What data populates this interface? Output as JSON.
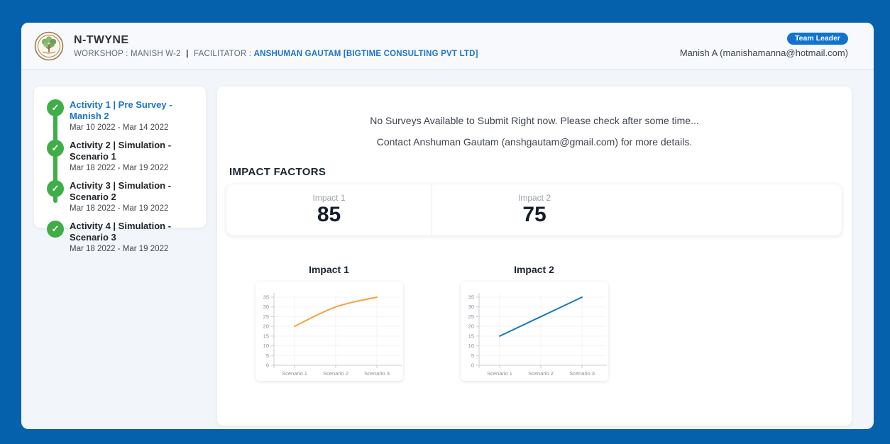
{
  "header": {
    "app_name": "N-TWYNE",
    "workshop_label": "WORKSHOP : MANISH W-2",
    "separator": "|",
    "facilitator_label": "FACILITATOR :",
    "facilitator_value": "ANSHUMAN GAUTAM [BIGTIME CONSULTING PVT LTD]",
    "badge": "Team Leader",
    "user": "Manish A (manishamanna@hotmail.com)"
  },
  "sidebar": {
    "activities": [
      {
        "title": "Activity 1 | Pre Survey - Manish 2",
        "dates": "Mar 10 2022 - Mar 14 2022",
        "active": true
      },
      {
        "title": "Activity 2 | Simulation - Scenario 1",
        "dates": "Mar 18 2022 - Mar 19 2022",
        "active": false
      },
      {
        "title": "Activity 3 | Simulation - Scenario 2",
        "dates": "Mar 18 2022 - Mar 19 2022",
        "active": false
      },
      {
        "title": "Activity 4 | Simulation - Scenario 3",
        "dates": "Mar 18 2022 - Mar 19 2022",
        "active": false
      }
    ]
  },
  "main": {
    "messages": [
      "No Surveys Available to Submit Right now. Please check after some time...",
      "Contact Anshuman Gautam (anshgautam@gmail.com) for more details."
    ],
    "impact_heading": "IMPACT FACTORS",
    "impacts": [
      {
        "label": "Impact 1",
        "value": "85"
      },
      {
        "label": "Impact 2",
        "value": "75"
      }
    ]
  },
  "colors": {
    "frame_blue": "#0561ac",
    "accent_blue": "#1a73cf",
    "badge_blue": "#1273ce",
    "check_green": "#3fae49",
    "impact1_line": "#f5a13d",
    "impact2_line": "#1478bd"
  },
  "chart_data": [
    {
      "type": "line",
      "title": "Impact 1",
      "categories": [
        "Scenario 1",
        "Scenario 2",
        "Scenario 3"
      ],
      "values": [
        20,
        30,
        35
      ],
      "ylim": [
        0,
        35
      ],
      "ytick_step": 5,
      "color": "#f5a13d",
      "smooth": true,
      "grid": true,
      "legend": false
    },
    {
      "type": "line",
      "title": "Impact 2",
      "categories": [
        "Scenario 1",
        "Scenario 2",
        "Scenario 3"
      ],
      "values": [
        15,
        25,
        35
      ],
      "ylim": [
        0,
        35
      ],
      "ytick_step": 5,
      "color": "#1478bd",
      "smooth": false,
      "grid": true,
      "legend": false
    }
  ]
}
